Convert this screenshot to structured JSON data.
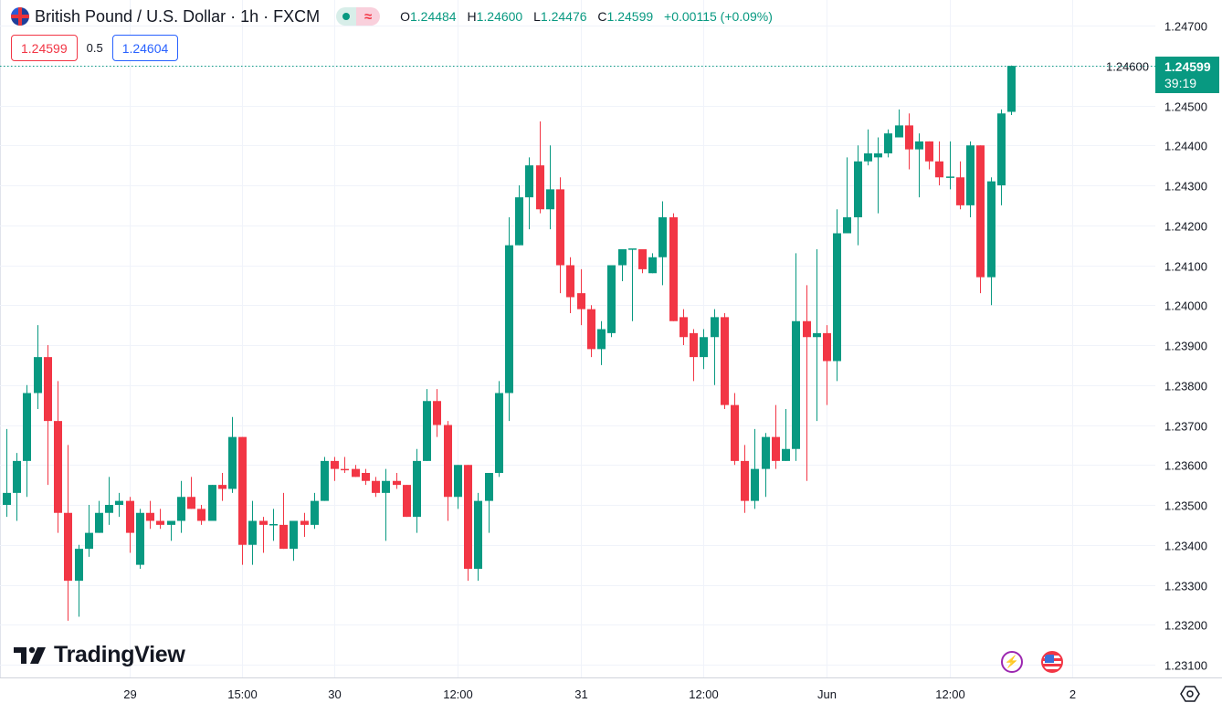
{
  "header": {
    "symbol_title": "British Pound / U.S. Dollar · 1h · FXCM",
    "flag_icon": "gb-us-flag-icon",
    "market_status": "market-open-dot",
    "delay_icon": "≈",
    "ohlc": {
      "o_label": "O",
      "o": "1.24484",
      "h_label": "H",
      "h": "1.24600",
      "l_label": "L",
      "l": "1.24476",
      "c_label": "C",
      "c": "1.24599",
      "change": "+0.00115 (+0.09%)"
    }
  },
  "trade": {
    "sell_price": "1.24599",
    "spread": "0.5",
    "buy_price": "1.24604"
  },
  "price_tag": {
    "price": "1.24599",
    "countdown": "39:19"
  },
  "branding": {
    "logo_text": "TradingView"
  },
  "colors": {
    "up": "#089981",
    "down": "#F23645",
    "grid": "#F0F3FA",
    "text": "#131722"
  },
  "chart_data": {
    "type": "candlestick",
    "title": "British Pound / U.S. Dollar · 1h · FXCM",
    "interval": "1h",
    "ylim": [
      1.2306,
      1.2476
    ],
    "y_ticks": [
      "1.24700",
      "1.24600",
      "1.24500",
      "1.24400",
      "1.24300",
      "1.24200",
      "1.24100",
      "1.24000",
      "1.23900",
      "1.23800",
      "1.23700",
      "1.23600",
      "1.23500",
      "1.23400",
      "1.23300",
      "1.23200",
      "1.23100"
    ],
    "y_tick_values": [
      1.247,
      1.246,
      1.245,
      1.244,
      1.243,
      1.242,
      1.241,
      1.24,
      1.239,
      1.238,
      1.237,
      1.236,
      1.235,
      1.234,
      1.233,
      1.232,
      1.231
    ],
    "x_ticks": [
      {
        "label": "29",
        "index": 12
      },
      {
        "label": "15:00",
        "index": 23
      },
      {
        "label": "30",
        "index": 32
      },
      {
        "label": "12:00",
        "index": 44
      },
      {
        "label": "31",
        "index": 56
      },
      {
        "label": "12:00",
        "index": 68
      },
      {
        "label": "Jun",
        "index": 80
      },
      {
        "label": "12:00",
        "index": 92
      },
      {
        "label": "2",
        "index": 104
      }
    ],
    "x_count": 111,
    "last_price": 1.24599,
    "ohlc_fields": [
      "open",
      "high",
      "low",
      "close"
    ],
    "candles": [
      [
        1.235,
        1.2369,
        1.2347,
        1.2353
      ],
      [
        1.2353,
        1.2363,
        1.2346,
        1.2361
      ],
      [
        1.2361,
        1.238,
        1.2352,
        1.2378
      ],
      [
        1.2378,
        1.2395,
        1.2374,
        1.2387
      ],
      [
        1.2387,
        1.239,
        1.2355,
        1.2371
      ],
      [
        1.2371,
        1.2381,
        1.2343,
        1.2348
      ],
      [
        1.2348,
        1.2365,
        1.2321,
        1.2331
      ],
      [
        1.2331,
        1.234,
        1.2322,
        1.2339
      ],
      [
        1.2339,
        1.235,
        1.2337,
        1.2343
      ],
      [
        1.2343,
        1.2351,
        1.2343,
        1.2348
      ],
      [
        1.2348,
        1.2357,
        1.2345,
        1.235
      ],
      [
        1.235,
        1.2353,
        1.2347,
        1.2351
      ],
      [
        1.2351,
        1.2352,
        1.2338,
        1.2343
      ],
      [
        1.2335,
        1.2349,
        1.2334,
        1.2348
      ],
      [
        1.2348,
        1.2351,
        1.2344,
        1.2346
      ],
      [
        1.2346,
        1.2349,
        1.2344,
        1.2345
      ],
      [
        1.2345,
        1.2346,
        1.2341,
        1.2346
      ],
      [
        1.2346,
        1.2356,
        1.2343,
        1.2352
      ],
      [
        1.2352,
        1.2357,
        1.2349,
        1.2349
      ],
      [
        1.2349,
        1.235,
        1.2345,
        1.2346
      ],
      [
        1.2346,
        1.2355,
        1.2346,
        1.2355
      ],
      [
        1.2355,
        1.2358,
        1.2351,
        1.2354
      ],
      [
        1.2354,
        1.2372,
        1.2353,
        1.2367
      ],
      [
        1.2367,
        1.2367,
        1.2335,
        1.234
      ],
      [
        1.234,
        1.2351,
        1.2335,
        1.2346
      ],
      [
        1.2346,
        1.2347,
        1.2338,
        1.2345
      ],
      [
        1.2345,
        1.2349,
        1.2341,
        1.23452
      ],
      [
        1.2345,
        1.2353,
        1.2339,
        1.2339
      ],
      [
        1.2339,
        1.2346,
        1.2336,
        1.2346
      ],
      [
        1.2346,
        1.2348,
        1.2342,
        1.2345
      ],
      [
        1.2345,
        1.2353,
        1.2344,
        1.2351
      ],
      [
        1.2351,
        1.2362,
        1.2351,
        1.2361
      ],
      [
        1.2361,
        1.2362,
        1.2356,
        1.2359
      ],
      [
        1.2359,
        1.2362,
        1.2358,
        1.23588
      ],
      [
        1.2359,
        1.236,
        1.2357,
        1.2357
      ],
      [
        1.2358,
        1.2359,
        1.2355,
        1.2356
      ],
      [
        1.2356,
        1.2357,
        1.2352,
        1.2353
      ],
      [
        1.2353,
        1.2359,
        1.2341,
        1.2356
      ],
      [
        1.2356,
        1.2358,
        1.2354,
        1.2355
      ],
      [
        1.2355,
        1.2355,
        1.2347,
        1.2347
      ],
      [
        1.2347,
        1.2364,
        1.2343,
        1.2361
      ],
      [
        1.2361,
        1.2379,
        1.2361,
        1.2376
      ],
      [
        1.2376,
        1.2379,
        1.2367,
        1.237
      ],
      [
        1.237,
        1.2371,
        1.2346,
        1.2352
      ],
      [
        1.2352,
        1.236,
        1.2349,
        1.236
      ],
      [
        1.236,
        1.236,
        1.2331,
        1.2334
      ],
      [
        1.2334,
        1.2353,
        1.2331,
        1.2351
      ],
      [
        1.2351,
        1.2358,
        1.2343,
        1.2358
      ],
      [
        1.2358,
        1.2381,
        1.2357,
        1.2378
      ],
      [
        1.2378,
        1.2422,
        1.2371,
        1.2415
      ],
      [
        1.2415,
        1.243,
        1.2415,
        1.2427
      ],
      [
        1.2427,
        1.2437,
        1.2419,
        1.2435
      ],
      [
        1.2435,
        1.2446,
        1.2423,
        1.2424
      ],
      [
        1.2424,
        1.244,
        1.2419,
        1.2429
      ],
      [
        1.2429,
        1.2432,
        1.2403,
        1.241
      ],
      [
        1.241,
        1.2412,
        1.2398,
        1.2402
      ],
      [
        1.2403,
        1.2409,
        1.2395,
        1.2399
      ],
      [
        1.2399,
        1.24,
        1.2387,
        1.2389
      ],
      [
        1.2389,
        1.2396,
        1.2385,
        1.2394
      ],
      [
        1.2393,
        1.241,
        1.2392,
        1.241
      ],
      [
        1.241,
        1.2414,
        1.2406,
        1.2414
      ],
      [
        1.2414,
        1.2414,
        1.2396,
        1.24142
      ],
      [
        1.2414,
        1.2414,
        1.2408,
        1.2409
      ],
      [
        1.2408,
        1.2413,
        1.2408,
        1.2412
      ],
      [
        1.2412,
        1.2426,
        1.2405,
        1.2422
      ],
      [
        1.2422,
        1.2423,
        1.2396,
        1.2396
      ],
      [
        1.2397,
        1.2399,
        1.239,
        1.2392
      ],
      [
        1.2393,
        1.2394,
        1.2381,
        1.2387
      ],
      [
        1.2387,
        1.2394,
        1.2384,
        1.2392
      ],
      [
        1.2392,
        1.2399,
        1.238,
        1.2397
      ],
      [
        1.2397,
        1.2398,
        1.2374,
        1.2375
      ],
      [
        1.2375,
        1.2378,
        1.236,
        1.2361
      ],
      [
        1.2361,
        1.2365,
        1.2348,
        1.2351
      ],
      [
        1.2351,
        1.2369,
        1.2349,
        1.2359
      ],
      [
        1.2359,
        1.2368,
        1.2352,
        1.2367
      ],
      [
        1.2367,
        1.2375,
        1.2359,
        1.2361
      ],
      [
        1.2361,
        1.2374,
        1.2361,
        1.2364
      ],
      [
        1.2364,
        1.2413,
        1.2361,
        1.2396
      ],
      [
        1.2396,
        1.2405,
        1.2356,
        1.2392
      ],
      [
        1.2392,
        1.2414,
        1.2371,
        1.2393
      ],
      [
        1.2393,
        1.2395,
        1.2375,
        1.2386
      ],
      [
        1.2386,
        1.2424,
        1.2381,
        1.2418
      ],
      [
        1.2418,
        1.2437,
        1.2418,
        1.2422
      ],
      [
        1.2422,
        1.244,
        1.2415,
        1.2436
      ],
      [
        1.2436,
        1.2444,
        1.2435,
        1.2438
      ],
      [
        1.2437,
        1.2442,
        1.2423,
        1.2438
      ],
      [
        1.2438,
        1.2444,
        1.2437,
        1.2443
      ],
      [
        1.2442,
        1.2449,
        1.2442,
        1.2445
      ],
      [
        1.2445,
        1.2448,
        1.2434,
        1.2439
      ],
      [
        1.2439,
        1.2443,
        1.2427,
        1.2441
      ],
      [
        1.2441,
        1.2441,
        1.2434,
        1.2436
      ],
      [
        1.2436,
        1.2441,
        1.243,
        1.2432
      ],
      [
        1.2432,
        1.2441,
        1.2429,
        1.24322
      ],
      [
        1.2432,
        1.2436,
        1.2424,
        1.2425
      ],
      [
        1.2425,
        1.2441,
        1.2422,
        1.244
      ],
      [
        1.244,
        1.244,
        1.2403,
        1.2407
      ],
      [
        1.2407,
        1.2432,
        1.24,
        1.2431
      ],
      [
        1.243,
        1.2449,
        1.2425,
        1.2448
      ],
      [
        1.24484,
        1.246,
        1.24476,
        1.24599
      ]
    ]
  }
}
